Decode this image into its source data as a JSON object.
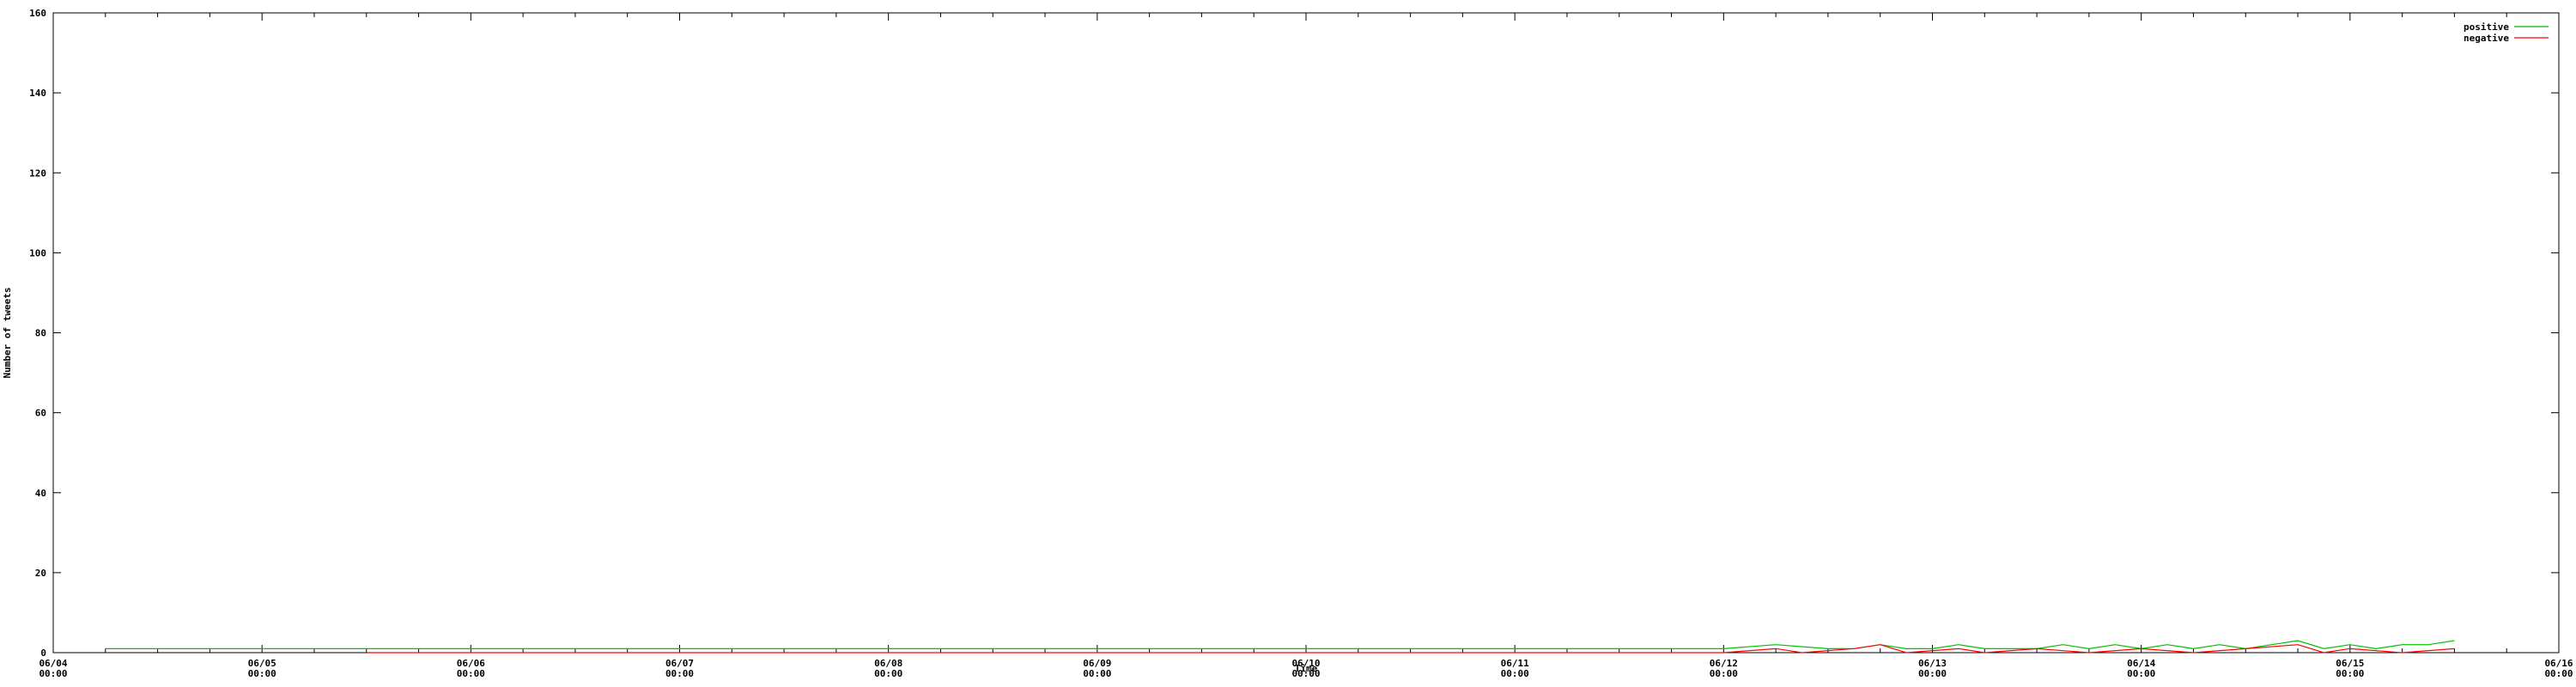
{
  "chart_data": {
    "type": "line",
    "xlabel": "Time",
    "ylabel": "Number of tweets",
    "ylim": [
      0,
      160
    ],
    "xlim": [
      "06/04 00:00",
      "06/16 00:00"
    ],
    "y_ticks": [
      "0",
      "20",
      "40",
      "60",
      "80",
      "100",
      "120",
      "140",
      "160"
    ],
    "x_ticks": [
      {
        "date": "06/04",
        "time": "00:00"
      },
      {
        "date": "06/05",
        "time": "00:00"
      },
      {
        "date": "06/06",
        "time": "00:00"
      },
      {
        "date": "06/07",
        "time": "00:00"
      },
      {
        "date": "06/08",
        "time": "00:00"
      },
      {
        "date": "06/09",
        "time": "00:00"
      },
      {
        "date": "06/10",
        "time": "00:00"
      },
      {
        "date": "06/11",
        "time": "00:00"
      },
      {
        "date": "06/12",
        "time": "00:00"
      },
      {
        "date": "06/13",
        "time": "00:00"
      },
      {
        "date": "06/14",
        "time": "00:00"
      },
      {
        "date": "06/15",
        "time": "00:00"
      },
      {
        "date": "06/16",
        "time": "00:00"
      }
    ],
    "legend_position": "top-right",
    "grid": false,
    "series": [
      {
        "name": "positive",
        "color": "#00c000",
        "points": [
          [
            "06/04 06:00",
            1
          ],
          [
            "06/05 12:00",
            1
          ],
          [
            "06/06 12:00",
            1
          ],
          [
            "06/07 12:00",
            1
          ],
          [
            "06/08 12:00",
            1
          ],
          [
            "06/09 12:00",
            1
          ],
          [
            "06/10 12:00",
            1
          ],
          [
            "06/11 12:00",
            1
          ],
          [
            "06/12 00:00",
            1
          ],
          [
            "06/12 06:00",
            2
          ],
          [
            "06/12 12:00",
            1
          ],
          [
            "06/12 15:00",
            1
          ],
          [
            "06/12 18:00",
            2
          ],
          [
            "06/12 21:00",
            1
          ],
          [
            "06/13 00:00",
            1
          ],
          [
            "06/13 03:00",
            2
          ],
          [
            "06/13 06:00",
            1
          ],
          [
            "06/13 09:00",
            1
          ],
          [
            "06/13 12:00",
            1
          ],
          [
            "06/13 15:00",
            2
          ],
          [
            "06/13 18:00",
            1
          ],
          [
            "06/13 21:00",
            2
          ],
          [
            "06/14 00:00",
            1
          ],
          [
            "06/14 03:00",
            2
          ],
          [
            "06/14 06:00",
            1
          ],
          [
            "06/14 09:00",
            2
          ],
          [
            "06/14 12:00",
            1
          ],
          [
            "06/14 15:00",
            2
          ],
          [
            "06/14 18:00",
            3
          ],
          [
            "06/14 21:00",
            1
          ],
          [
            "06/15 00:00",
            2
          ],
          [
            "06/15 03:00",
            1
          ],
          [
            "06/15 06:00",
            2
          ],
          [
            "06/15 09:00",
            2
          ],
          [
            "06/15 12:00",
            3
          ]
        ]
      },
      {
        "name": "negative",
        "color": "#ff0000",
        "points": [
          [
            "06/05 12:00",
            0
          ],
          [
            "06/06 12:00",
            0
          ],
          [
            "06/07 12:00",
            0
          ],
          [
            "06/08 12:00",
            0
          ],
          [
            "06/09 12:00",
            0
          ],
          [
            "06/10 12:00",
            0
          ],
          [
            "06/11 12:00",
            0
          ],
          [
            "06/12 00:00",
            0
          ],
          [
            "06/12 06:00",
            1
          ],
          [
            "06/12 09:00",
            0
          ],
          [
            "06/12 15:00",
            1
          ],
          [
            "06/12 18:00",
            2
          ],
          [
            "06/12 21:00",
            0
          ],
          [
            "06/13 03:00",
            1
          ],
          [
            "06/13 06:00",
            0
          ],
          [
            "06/13 12:00",
            1
          ],
          [
            "06/13 18:00",
            0
          ],
          [
            "06/14 00:00",
            1
          ],
          [
            "06/14 06:00",
            0
          ],
          [
            "06/14 12:00",
            1
          ],
          [
            "06/14 18:00",
            2
          ],
          [
            "06/14 21:00",
            0
          ],
          [
            "06/15 00:00",
            1
          ],
          [
            "06/15 06:00",
            0
          ],
          [
            "06/15 12:00",
            1
          ]
        ]
      }
    ]
  }
}
